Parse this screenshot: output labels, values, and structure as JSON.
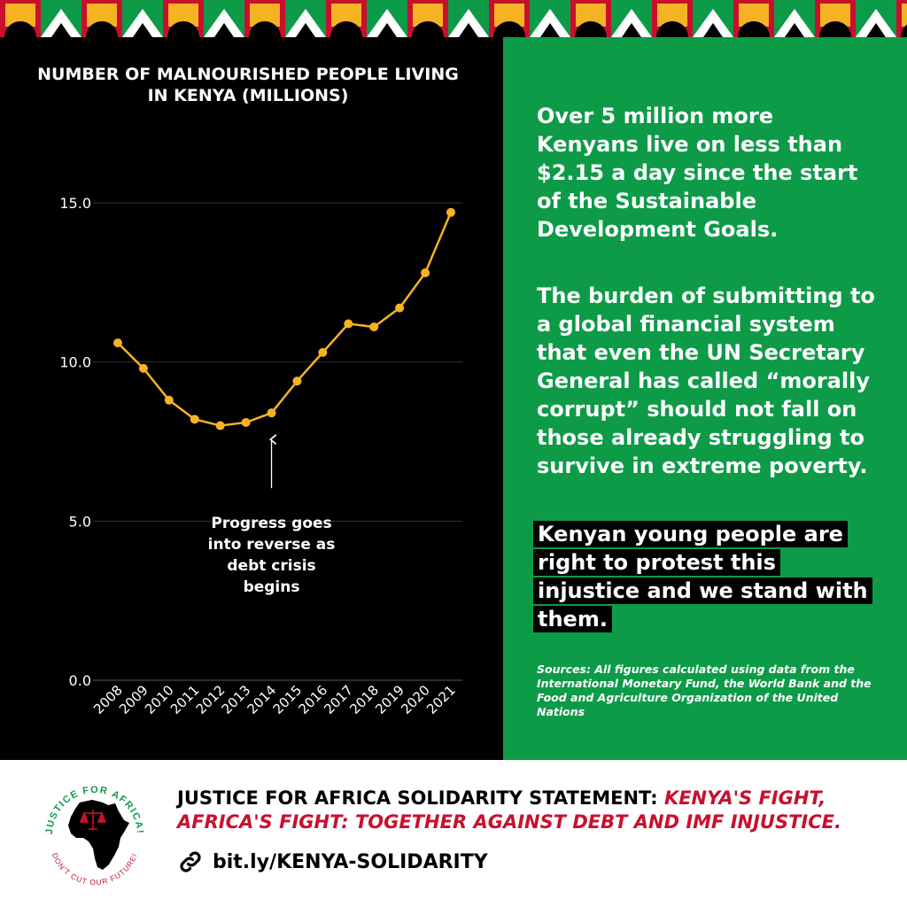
{
  "chart_data": {
    "type": "line",
    "title": "NUMBER OF MALNOURISHED PEOPLE LIVING IN KENYA (MILLIONS)",
    "categories": [
      "2008",
      "2009",
      "2010",
      "2011",
      "2012",
      "2013",
      "2014",
      "2015",
      "2016",
      "2017",
      "2018",
      "2019",
      "2020",
      "2021"
    ],
    "values": [
      10.6,
      9.8,
      8.8,
      8.2,
      8.0,
      8.1,
      8.4,
      9.4,
      10.3,
      11.2,
      11.1,
      11.7,
      12.8,
      14.7
    ],
    "ylim": [
      0,
      15
    ],
    "yticks": [
      "0.0",
      "5.0",
      "10.0",
      "15.0"
    ],
    "grid": true,
    "line_color": "#f5b324",
    "annotation": {
      "text_lines": [
        "Progress goes",
        "into reverse as",
        "debt crisis",
        "begins"
      ],
      "points_to": "2014"
    }
  },
  "panel": {
    "paragraph1": "Over 5 million more Kenyans live on less than $2.15 a day since the start of the Sustainable Development Goals.",
    "paragraph2": "The burden of submitting to a global financial system that even the UN Secretary General has called “morally corrupt” should not fall on those already struggling to survive in extreme poverty.",
    "callout": "Kenyan young people are right to protest this injustice and we stand with them.",
    "sources": "Sources: All figures calculated using data from the International Monetary Fund, the World Bank and the Food and Agriculture Organization of the United Nations"
  },
  "footer": {
    "headline_prefix": "JUSTICE FOR AFRICA SOLIDARITY STATEMENT: ",
    "headline_highlight": "KENYA'S FIGHT, AFRICA'S FIGHT: TOGETHER AGAINST DEBT AND IMF INJUSTICE.",
    "link_text": "bit.ly/KENYA-SOLIDARITY",
    "logo_top_text": "JUSTICE FOR AFRICA!",
    "logo_bottom_text": "DON'T CUT OUR FUTURE!"
  },
  "colors": {
    "green": "#0d9b48",
    "red": "#c8102e",
    "yellow": "#f5b324",
    "black": "#000000"
  }
}
